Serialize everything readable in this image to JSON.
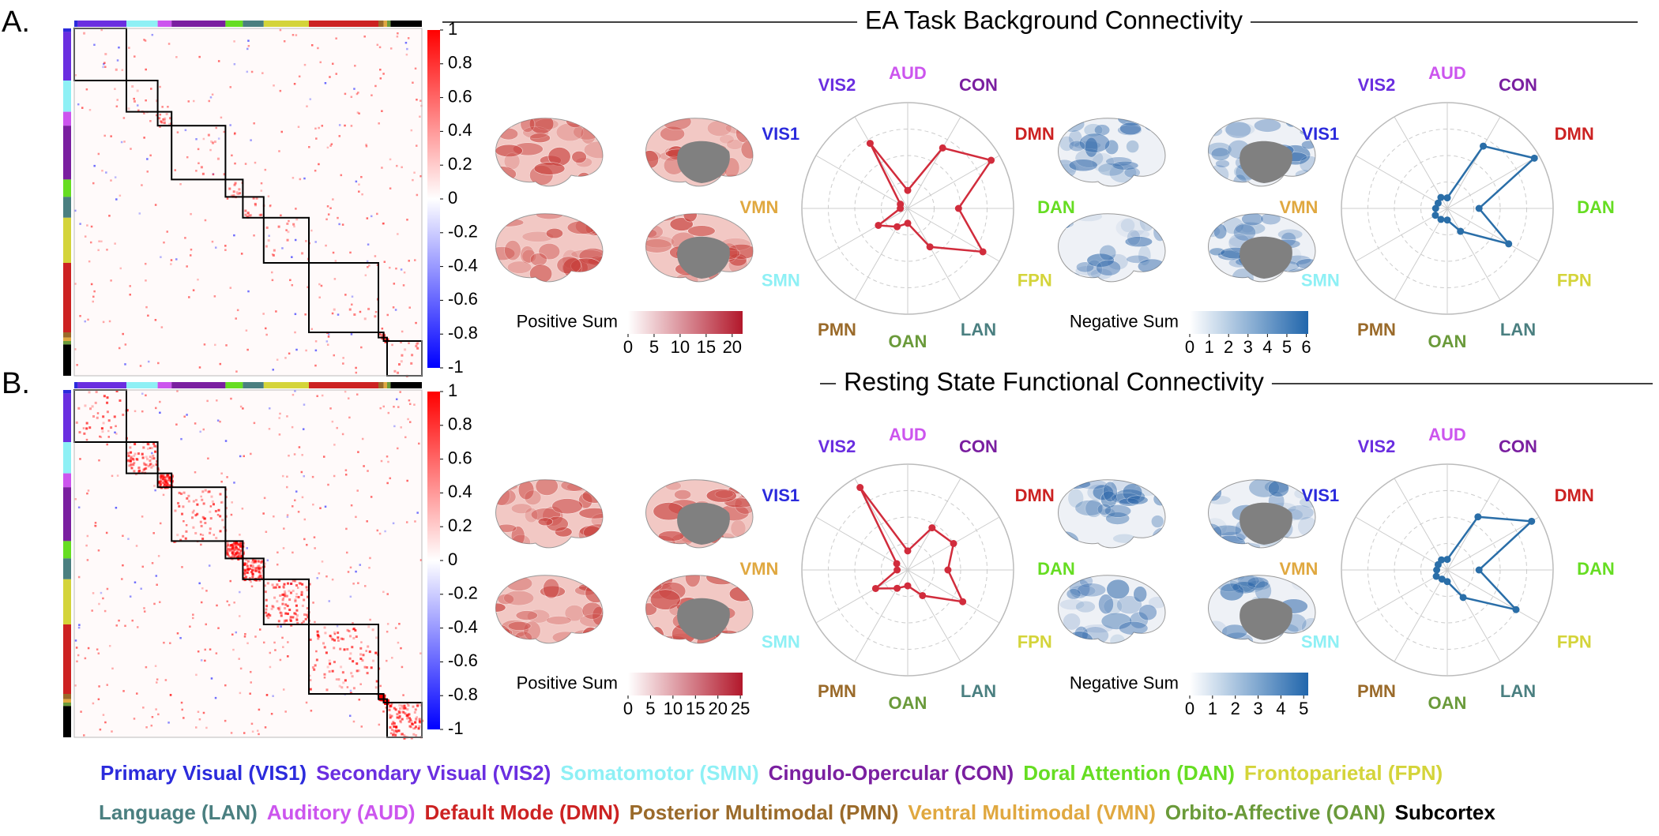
{
  "panels": [
    {
      "label": "A.",
      "title": "EA Task Background Connectivity"
    },
    {
      "label": "B.",
      "title": "Resting State Functional Connectivity"
    }
  ],
  "colorbars": [
    {
      "lim": [
        -1,
        1
      ],
      "ticks": [
        -1,
        -0.8,
        -0.6,
        -0.4,
        -0.2,
        0,
        0.2,
        0.4,
        0.6,
        0.8,
        1
      ],
      "colors": [
        "#0000ff",
        "#ffffff",
        "#ff0000"
      ]
    },
    {
      "label": "Positive Sum",
      "lim": [
        0,
        22
      ],
      "ticks": [
        0,
        5,
        10,
        15,
        20
      ],
      "colors": [
        "#ffffff",
        "#b2182b"
      ]
    },
    {
      "label": "Negative Sum",
      "lim": [
        0,
        6.1
      ],
      "ticks": [
        0,
        1,
        2,
        3,
        4,
        5,
        6
      ],
      "colors": [
        "#ffffff",
        "#2166ac"
      ]
    },
    {
      "lim": [
        -1,
        1
      ],
      "ticks": [
        -1,
        -0.8,
        -0.6,
        -0.4,
        -0.2,
        0,
        0.2,
        0.4,
        0.6,
        0.8,
        1
      ],
      "colors": [
        "#0000ff",
        "#ffffff",
        "#ff0000"
      ]
    },
    {
      "label": "Positive Sum",
      "lim": [
        0,
        25.5
      ],
      "ticks": [
        0,
        5,
        10,
        15,
        20,
        25
      ],
      "colors": [
        "#ffffff",
        "#b2182b"
      ]
    },
    {
      "label": "Negative Sum",
      "lim": [
        0,
        5.2
      ],
      "ticks": [
        0,
        1,
        2,
        3,
        4,
        5
      ],
      "colors": [
        "#ffffff",
        "#2166ac"
      ]
    }
  ],
  "chart_data": [
    {
      "type": "radar",
      "categories": [
        "AUD",
        "CON",
        "DMN",
        "DAN",
        "FPN",
        "LAN",
        "OAN",
        "PMN",
        "SMN",
        "VMN",
        "VIS1",
        "VIS2"
      ],
      "category_colors": [
        "#cc55ee",
        "#7a1fa0",
        "#cc2222",
        "#66dd22",
        "#d4d43a",
        "#4a7f80",
        "#6a9a3a",
        "#9a6a2a",
        "#8ef0f5",
        "#e0a840",
        "#2b2bdc",
        "#6a2ee0"
      ],
      "values": [
        0.17,
        0.66,
        0.91,
        0.48,
        0.82,
        0.42,
        0.14,
        0.2,
        0.32,
        0.07,
        0.08,
        0.71
      ],
      "color": "#d12c3c",
      "rlim": [
        0,
        1
      ]
    },
    {
      "type": "radar",
      "categories": [
        "AUD",
        "CON",
        "DMN",
        "DAN",
        "FPN",
        "LAN",
        "OAN",
        "PMN",
        "SMN",
        "VMN",
        "VIS1",
        "VIS2"
      ],
      "category_colors": [
        "#cc55ee",
        "#7a1fa0",
        "#cc2222",
        "#66dd22",
        "#d4d43a",
        "#4a7f80",
        "#6a9a3a",
        "#9a6a2a",
        "#8ef0f5",
        "#e0a840",
        "#2b2bdc",
        "#6a2ee0"
      ],
      "values": [
        0.1,
        0.68,
        0.95,
        0.3,
        0.67,
        0.25,
        0.11,
        0.12,
        0.13,
        0.11,
        0.1,
        0.12
      ],
      "color": "#2a6ea8",
      "rlim": [
        0,
        1
      ]
    },
    {
      "type": "radar",
      "categories": [
        "AUD",
        "CON",
        "DMN",
        "DAN",
        "FPN",
        "LAN",
        "OAN",
        "PMN",
        "SMN",
        "VMN",
        "VIS1",
        "VIS2"
      ],
      "category_colors": [
        "#cc55ee",
        "#7a1fa0",
        "#cc2222",
        "#66dd22",
        "#d4d43a",
        "#4a7f80",
        "#6a9a3a",
        "#9a6a2a",
        "#8ef0f5",
        "#e0a840",
        "#2b2bdc",
        "#6a2ee0"
      ],
      "values": [
        0.18,
        0.46,
        0.5,
        0.38,
        0.6,
        0.28,
        0.15,
        0.2,
        0.35,
        0.1,
        0.12,
        0.9
      ],
      "color": "#d12c3c",
      "rlim": [
        0,
        1
      ]
    },
    {
      "type": "radar",
      "categories": [
        "AUD",
        "CON",
        "DMN",
        "DAN",
        "FPN",
        "LAN",
        "OAN",
        "PMN",
        "SMN",
        "VMN",
        "VIS1",
        "VIS2"
      ],
      "category_colors": [
        "#cc55ee",
        "#7a1fa0",
        "#cc2222",
        "#66dd22",
        "#d4d43a",
        "#4a7f80",
        "#6a9a3a",
        "#9a6a2a",
        "#8ef0f5",
        "#e0a840",
        "#2b2bdc",
        "#6a2ee0"
      ],
      "values": [
        0.1,
        0.58,
        0.92,
        0.3,
        0.75,
        0.3,
        0.11,
        0.1,
        0.12,
        0.1,
        0.1,
        0.11
      ],
      "color": "#2a6ea8",
      "rlim": [
        0,
        1
      ]
    }
  ],
  "legend": [
    [
      {
        "text": "Primary Visual (VIS1)",
        "color": "#2b2bdc"
      },
      {
        "text": "Secondary Visual (VIS2)",
        "color": "#6a2ee0"
      },
      {
        "text": "Somatomotor (SMN)",
        "color": "#8ef0f5"
      },
      {
        "text": "Cingulo-Opercular (CON)",
        "color": "#7a1fa0"
      },
      {
        "text": "Doral Attention (DAN)",
        "color": "#66dd22"
      },
      {
        "text": "Frontoparietal (FPN)",
        "color": "#d4d43a"
      }
    ],
    [
      {
        "text": "Language (LAN)",
        "color": "#4a7f80"
      },
      {
        "text": "Auditory (AUD)",
        "color": "#cc55ee"
      },
      {
        "text": "Default Mode (DMN)",
        "color": "#cc2222"
      },
      {
        "text": "Posterior Multimodal (PMN)",
        "color": "#9a6a2a"
      },
      {
        "text": "Ventral Multimodal (VMN)",
        "color": "#e0a840"
      },
      {
        "text": "Orbito-Affective (OAN)",
        "color": "#6a9a3a"
      },
      {
        "text": "Subcortex",
        "color": "#000000"
      }
    ]
  ]
}
